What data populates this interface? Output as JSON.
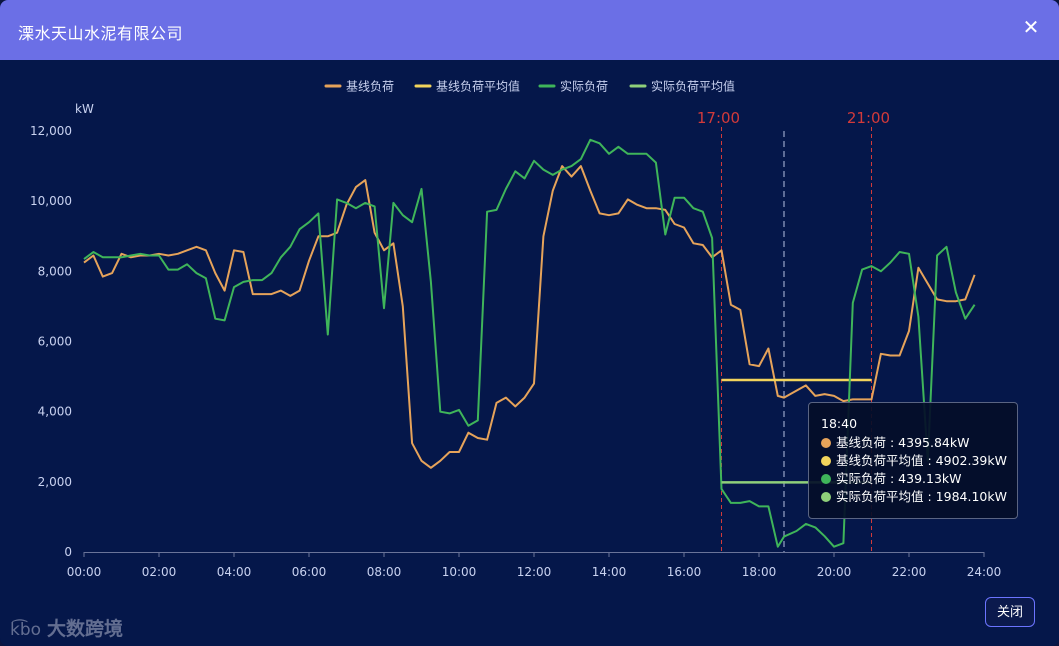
{
  "dialog": {
    "title": "溧水天山水泥有限公司",
    "close_button_label": "关闭",
    "close_icon": "close-icon"
  },
  "watermark": {
    "logo": "k͡bo",
    "text": "大数跨境"
  },
  "colors": {
    "header": "#6b6fe6",
    "background": "#05174a",
    "baseline": "#e6a35a",
    "baseline_avg": "#f2d45c",
    "actual": "#3fb55a",
    "actual_avg": "#8fd07a",
    "marker": "#d23a3a",
    "cursor": "#9aa6c8"
  },
  "tooltip": {
    "time": "18:40",
    "rows": [
      {
        "label": "基线负荷 : 4395.84kW",
        "color": "#e6a35a"
      },
      {
        "label": "基线负荷平均值 : 4902.39kW",
        "color": "#f2d45c"
      },
      {
        "label": "实际负荷 : 439.13kW",
        "color": "#3fb55a"
      },
      {
        "label": "实际负荷平均值 : 1984.10kW",
        "color": "#8fd07a"
      }
    ]
  },
  "chart_data": {
    "type": "line",
    "ylabel": "kW",
    "ylim": [
      0,
      12000
    ],
    "y_ticks": [
      "0",
      "2,000",
      "4,000",
      "6,000",
      "8,000",
      "10,000",
      "12,000"
    ],
    "x_ticks": [
      "00:00",
      "02:00",
      "04:00",
      "06:00",
      "08:00",
      "10:00",
      "12:00",
      "14:00",
      "16:00",
      "18:00",
      "20:00",
      "22:00",
      "24:00"
    ],
    "xlim_hours": [
      0,
      24
    ],
    "grid": false,
    "legend_position": "top-center",
    "markers": [
      {
        "label": "17:00",
        "hour": 17
      },
      {
        "label": "21:00",
        "hour": 21
      }
    ],
    "cursor_hour": 18.6667,
    "series": [
      {
        "name": "基线负荷",
        "color": "#e6a35a",
        "points": [
          [
            0,
            8250
          ],
          [
            0.25,
            8450
          ],
          [
            0.5,
            7850
          ],
          [
            0.75,
            7950
          ],
          [
            1,
            8500
          ],
          [
            1.25,
            8400
          ],
          [
            1.5,
            8450
          ],
          [
            1.75,
            8450
          ],
          [
            2,
            8500
          ],
          [
            2.25,
            8450
          ],
          [
            2.5,
            8500
          ],
          [
            2.75,
            8600
          ],
          [
            3,
            8700
          ],
          [
            3.25,
            8600
          ],
          [
            3.5,
            7950
          ],
          [
            3.75,
            7450
          ],
          [
            4,
            8600
          ],
          [
            4.25,
            8550
          ],
          [
            4.5,
            7350
          ],
          [
            4.75,
            7350
          ],
          [
            5,
            7350
          ],
          [
            5.25,
            7450
          ],
          [
            5.5,
            7300
          ],
          [
            5.75,
            7450
          ],
          [
            6,
            8300
          ],
          [
            6.25,
            9000
          ],
          [
            6.5,
            9000
          ],
          [
            6.75,
            9100
          ],
          [
            7,
            9900
          ],
          [
            7.25,
            10400
          ],
          [
            7.5,
            10600
          ],
          [
            7.75,
            9100
          ],
          [
            8,
            8600
          ],
          [
            8.25,
            8800
          ],
          [
            8.5,
            7000
          ],
          [
            8.75,
            3100
          ],
          [
            9,
            2600
          ],
          [
            9.25,
            2400
          ],
          [
            9.5,
            2600
          ],
          [
            9.75,
            2850
          ],
          [
            10,
            2850
          ],
          [
            10.25,
            3400
          ],
          [
            10.5,
            3250
          ],
          [
            10.75,
            3200
          ],
          [
            11,
            4250
          ],
          [
            11.25,
            4400
          ],
          [
            11.5,
            4150
          ],
          [
            11.75,
            4400
          ],
          [
            12,
            4800
          ],
          [
            12.25,
            9000
          ],
          [
            12.5,
            10300
          ],
          [
            12.75,
            11000
          ],
          [
            13,
            10700
          ],
          [
            13.25,
            11000
          ],
          [
            13.5,
            10300
          ],
          [
            13.75,
            9650
          ],
          [
            14,
            9600
          ],
          [
            14.25,
            9650
          ],
          [
            14.5,
            10050
          ],
          [
            14.75,
            9900
          ],
          [
            15,
            9800
          ],
          [
            15.25,
            9800
          ],
          [
            15.5,
            9750
          ],
          [
            15.75,
            9350
          ],
          [
            16,
            9250
          ],
          [
            16.25,
            8800
          ],
          [
            16.5,
            8750
          ],
          [
            16.75,
            8400
          ],
          [
            17,
            8600
          ],
          [
            17.25,
            7050
          ],
          [
            17.5,
            6900
          ],
          [
            17.75,
            5350
          ],
          [
            18,
            5300
          ],
          [
            18.25,
            5800
          ],
          [
            18.5,
            4450
          ],
          [
            18.667,
            4400
          ],
          [
            19,
            4600
          ],
          [
            19.25,
            4750
          ],
          [
            19.5,
            4450
          ],
          [
            19.75,
            4500
          ],
          [
            20,
            4450
          ],
          [
            20.25,
            4300
          ],
          [
            20.5,
            4350
          ],
          [
            20.75,
            4350
          ],
          [
            21,
            4350
          ],
          [
            21.25,
            5650
          ],
          [
            21.5,
            5600
          ],
          [
            21.75,
            5600
          ],
          [
            22,
            6300
          ],
          [
            22.25,
            8100
          ],
          [
            22.5,
            7650
          ],
          [
            22.75,
            7200
          ],
          [
            23,
            7150
          ],
          [
            23.25,
            7150
          ],
          [
            23.5,
            7200
          ],
          [
            23.75,
            7900
          ]
        ]
      },
      {
        "name": "基线负荷平均值",
        "color": "#f2d45c",
        "points": [
          [
            17,
            4902.39
          ],
          [
            21,
            4902.39
          ]
        ]
      },
      {
        "name": "实际负荷",
        "color": "#3fb55a",
        "points": [
          [
            0,
            8350
          ],
          [
            0.25,
            8550
          ],
          [
            0.5,
            8400
          ],
          [
            0.75,
            8400
          ],
          [
            1,
            8400
          ],
          [
            1.25,
            8450
          ],
          [
            1.5,
            8500
          ],
          [
            1.75,
            8450
          ],
          [
            2,
            8450
          ],
          [
            2.25,
            8050
          ],
          [
            2.5,
            8050
          ],
          [
            2.75,
            8200
          ],
          [
            3,
            7950
          ],
          [
            3.25,
            7800
          ],
          [
            3.5,
            6650
          ],
          [
            3.75,
            6600
          ],
          [
            4,
            7550
          ],
          [
            4.25,
            7700
          ],
          [
            4.5,
            7750
          ],
          [
            4.75,
            7750
          ],
          [
            5,
            7950
          ],
          [
            5.25,
            8400
          ],
          [
            5.5,
            8700
          ],
          [
            5.75,
            9200
          ],
          [
            6,
            9400
          ],
          [
            6.25,
            9650
          ],
          [
            6.5,
            6200
          ],
          [
            6.75,
            10050
          ],
          [
            7,
            9950
          ],
          [
            7.25,
            9800
          ],
          [
            7.5,
            9950
          ],
          [
            7.75,
            9850
          ],
          [
            8,
            6950
          ],
          [
            8.25,
            9950
          ],
          [
            8.5,
            9600
          ],
          [
            8.75,
            9400
          ],
          [
            9,
            10350
          ],
          [
            9.25,
            7700
          ],
          [
            9.5,
            4000
          ],
          [
            9.75,
            3950
          ],
          [
            10,
            4050
          ],
          [
            10.25,
            3600
          ],
          [
            10.5,
            3750
          ],
          [
            10.75,
            9700
          ],
          [
            11,
            9750
          ],
          [
            11.25,
            10350
          ],
          [
            11.5,
            10850
          ],
          [
            11.75,
            10650
          ],
          [
            12,
            11150
          ],
          [
            12.25,
            10900
          ],
          [
            12.5,
            10750
          ],
          [
            12.75,
            10900
          ],
          [
            13,
            11000
          ],
          [
            13.25,
            11200
          ],
          [
            13.5,
            11750
          ],
          [
            13.75,
            11650
          ],
          [
            14,
            11350
          ],
          [
            14.25,
            11550
          ],
          [
            14.5,
            11350
          ],
          [
            14.75,
            11350
          ],
          [
            15,
            11350
          ],
          [
            15.25,
            11100
          ],
          [
            15.5,
            9050
          ],
          [
            15.75,
            10100
          ],
          [
            16,
            10100
          ],
          [
            16.25,
            9800
          ],
          [
            16.5,
            9700
          ],
          [
            16.75,
            8950
          ],
          [
            17,
            1800
          ],
          [
            17.25,
            1400
          ],
          [
            17.5,
            1400
          ],
          [
            17.75,
            1450
          ],
          [
            18,
            1300
          ],
          [
            18.25,
            1300
          ],
          [
            18.5,
            150
          ],
          [
            18.667,
            439.13
          ],
          [
            19,
            600
          ],
          [
            19.25,
            800
          ],
          [
            19.5,
            700
          ],
          [
            19.75,
            450
          ],
          [
            20,
            150
          ],
          [
            20.25,
            250
          ],
          [
            20.5,
            7100
          ],
          [
            20.75,
            8050
          ],
          [
            21,
            8150
          ],
          [
            21.25,
            8000
          ],
          [
            21.5,
            8250
          ],
          [
            21.75,
            8550
          ],
          [
            22,
            8500
          ],
          [
            22.25,
            6700
          ],
          [
            22.5,
            2600
          ],
          [
            22.75,
            8450
          ],
          [
            23,
            8700
          ],
          [
            23.25,
            7400
          ],
          [
            23.5,
            6650
          ],
          [
            23.75,
            7050
          ]
        ]
      },
      {
        "name": "实际负荷平均值",
        "color": "#8fd07a",
        "points": [
          [
            17,
            1984.1
          ],
          [
            21,
            1984.1
          ]
        ]
      }
    ]
  }
}
